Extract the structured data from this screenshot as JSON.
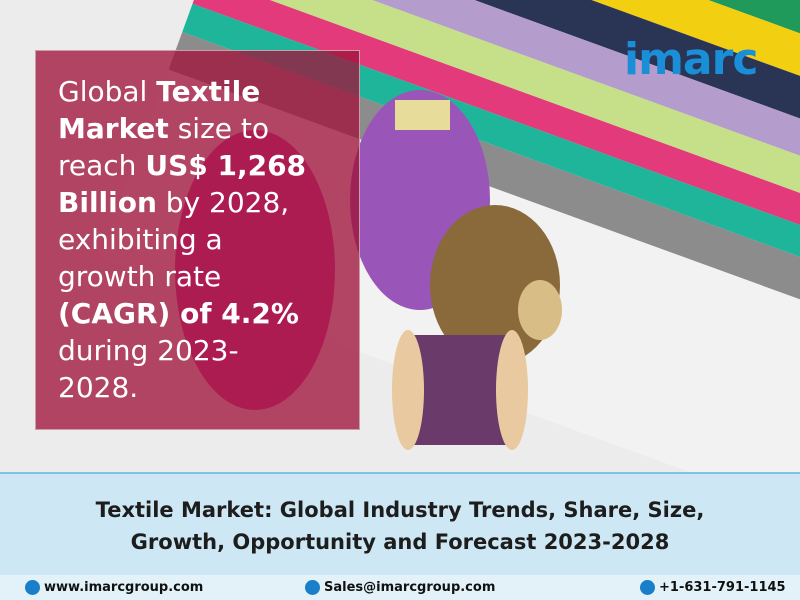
{
  "logo": "imarc",
  "headline_lines": [
    [
      {
        "text": "Global "
      },
      {
        "text": "Textile",
        "bold": true
      }
    ],
    [
      {
        "text": "Market",
        "bold": true
      },
      {
        "text": " size to"
      }
    ],
    [
      {
        "text": "reach "
      },
      {
        "text": "US$ 1,268",
        "bold": true
      }
    ],
    [
      {
        "text": "Billion",
        "bold": true
      },
      {
        "text": " by 2028,"
      }
    ],
    [
      {
        "text": "exhibiting a"
      }
    ],
    [
      {
        "text": "growth rate"
      }
    ],
    [
      {
        "text": "(CAGR) of 4.2%",
        "bold": true
      }
    ],
    [
      {
        "text": "during 2023-"
      }
    ],
    [
      {
        "text": "2028."
      }
    ]
  ],
  "banner": {
    "line1": "Textile Market: Global Industry Trends, Share, Size,",
    "line2": "Growth, Opportunity and Forecast 2023-2028"
  },
  "footer": {
    "website": "www.imarcgroup.com",
    "email": "Sales@imarcgroup.com",
    "phone": "+1-631-791-1145"
  }
}
